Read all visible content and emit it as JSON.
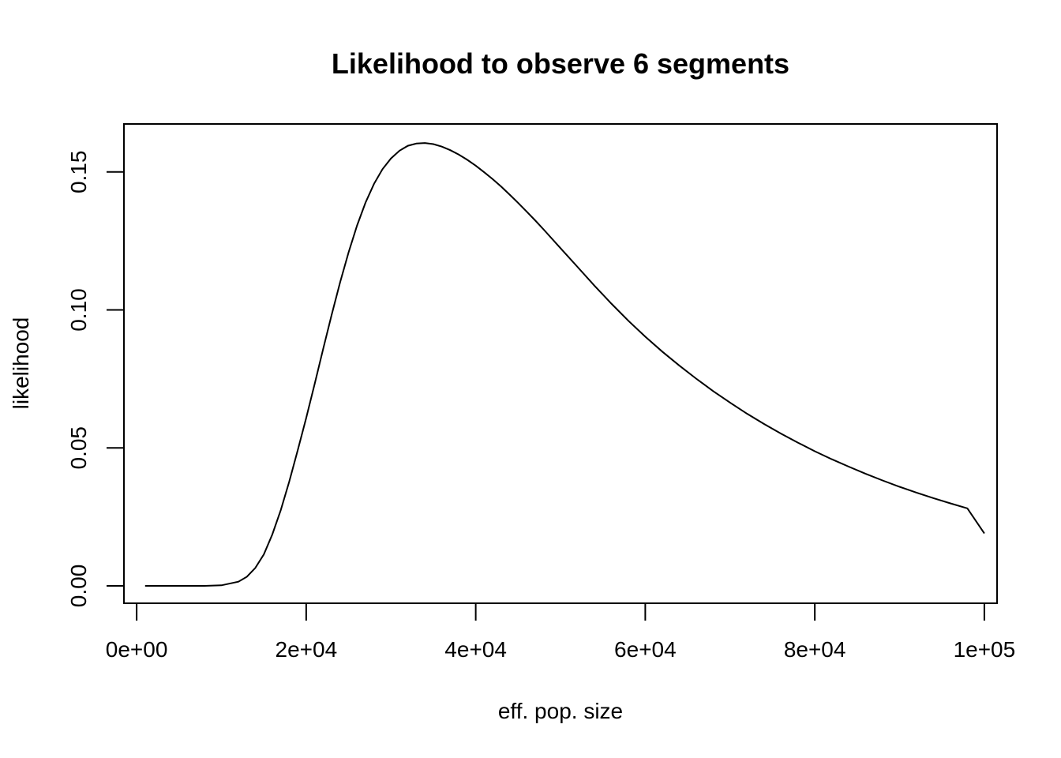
{
  "chart_data": {
    "type": "line",
    "title": "Likelihood to observe 6 segments",
    "xlabel": "eff. pop. size",
    "ylabel": "likelihood",
    "xlim": [
      -1500,
      101500
    ],
    "ylim": [
      -0.0063,
      0.1674
    ],
    "x_ticks": [
      0,
      20000,
      40000,
      60000,
      80000,
      100000
    ],
    "x_tick_labels": [
      "0e+00",
      "2e+04",
      "4e+04",
      "6e+04",
      "8e+04",
      "1e+05"
    ],
    "y_ticks": [
      0,
      0.05,
      0.1,
      0.15
    ],
    "y_tick_labels": [
      "0.00",
      "0.05",
      "0.10",
      "0.15"
    ],
    "grid": false,
    "legend": "none",
    "series": [
      {
        "x": [
          1000,
          8000,
          10000,
          12000,
          13000,
          14000,
          15000,
          16000,
          17000,
          18000,
          19000,
          20000,
          21000,
          22000,
          23000,
          24000,
          25000,
          26000,
          27000,
          28000,
          29000,
          30000,
          31000,
          32000,
          33000,
          34000,
          35000,
          36000,
          37000,
          38000,
          39000,
          40000,
          41000,
          42000,
          43000,
          44000,
          45000,
          46000,
          47000,
          48000,
          50000,
          52000,
          54000,
          56000,
          58000,
          60000,
          62000,
          64000,
          66000,
          68000,
          70000,
          72000,
          74000,
          76000,
          78000,
          80000,
          82000,
          84000,
          86000,
          88000,
          90000,
          92000,
          94000,
          96000,
          98000,
          100000
        ],
        "y": [
          0.0,
          0.0,
          0.0002,
          0.0015,
          0.0033,
          0.0065,
          0.0114,
          0.0186,
          0.0275,
          0.0378,
          0.0491,
          0.0609,
          0.0732,
          0.0858,
          0.0982,
          0.11,
          0.1209,
          0.1306,
          0.1389,
          0.1457,
          0.151,
          0.1549,
          0.1577,
          0.1595,
          0.1603,
          0.1605,
          0.1601,
          0.1592,
          0.1579,
          0.1563,
          0.1544,
          0.1523,
          0.1499,
          0.1474,
          0.1447,
          0.1418,
          0.1388,
          0.1357,
          0.1325,
          0.1292,
          0.1224,
          0.1156,
          0.1088,
          0.1023,
          0.0961,
          0.0903,
          0.0849,
          0.0799,
          0.0751,
          0.0706,
          0.0664,
          0.0624,
          0.0587,
          0.0552,
          0.0519,
          0.0488,
          0.0459,
          0.0432,
          0.0406,
          0.0382,
          0.0359,
          0.0338,
          0.0318,
          0.0299,
          0.0281,
          0.019
        ]
      }
    ]
  }
}
